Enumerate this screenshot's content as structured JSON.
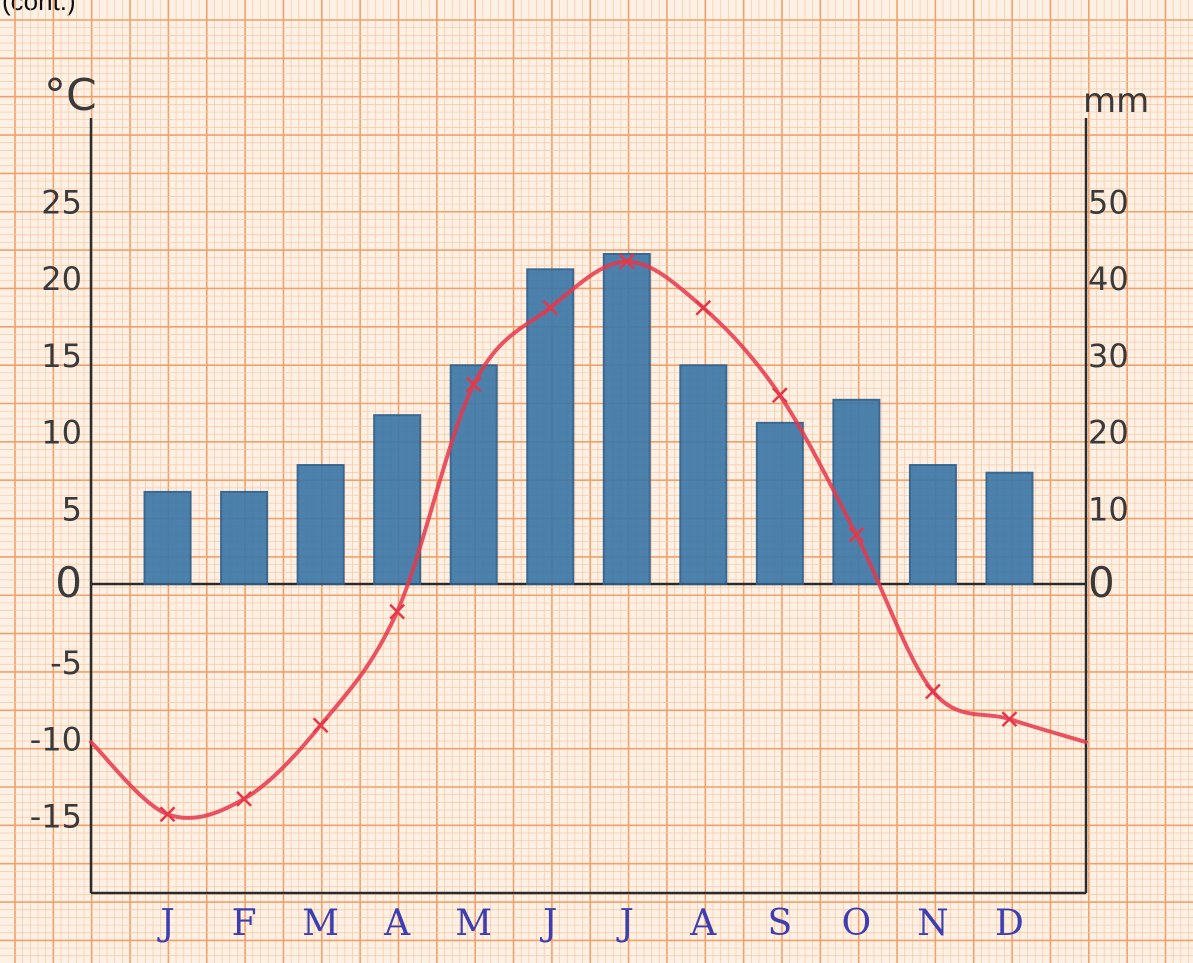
{
  "caption": "(cont.)",
  "chart_data": {
    "type": "bar+line",
    "categories": [
      "J",
      "F",
      "M",
      "A",
      "M",
      "J",
      "J",
      "A",
      "S",
      "O",
      "N",
      "D"
    ],
    "left_axis": {
      "unit": "°C",
      "ylim": [
        -20,
        30
      ],
      "ticks": [
        25,
        20,
        15,
        10,
        5,
        0,
        -5,
        -10,
        -15
      ]
    },
    "right_axis": {
      "unit": "mm",
      "ylim": [
        -40,
        60
      ],
      "ticks": [
        50,
        40,
        30,
        20,
        10,
        0
      ]
    },
    "series": [
      {
        "kind": "bar",
        "axis": "right",
        "values": [
          12,
          12,
          15.5,
          22,
          28.5,
          41,
          43,
          28.5,
          21,
          24,
          15.5,
          14.5
        ]
      },
      {
        "kind": "line",
        "axis": "left",
        "values": [
          -15,
          -14,
          -9.2,
          -1.8,
          13,
          18,
          21,
          18,
          12.3,
          3.2,
          -7,
          -8.8
        ],
        "line_start_value": -10.3,
        "line_end_value": -10.3
      }
    ],
    "colors": {
      "bars": "#3d78a8",
      "bar_edge": "#2a5e8c",
      "line": "#e6374a",
      "grid_major": "#f2a06a",
      "grid_minor": "#f7c7a2",
      "axis": "#2b2b2b",
      "month_labels": "#3d3fb0",
      "paper": "#fdf1e6"
    },
    "grid": true
  }
}
